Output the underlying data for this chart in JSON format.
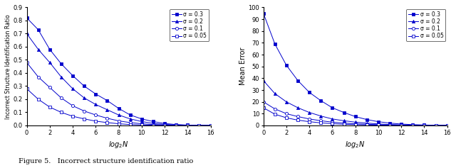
{
  "x_values": [
    0,
    1,
    2,
    3,
    4,
    5,
    6,
    7,
    8,
    9,
    10,
    11,
    12,
    13,
    14,
    15,
    16
  ],
  "left_sigma03": [
    0.82,
    0.73,
    0.58,
    0.47,
    0.38,
    0.3,
    0.24,
    0.19,
    0.13,
    0.08,
    0.05,
    0.03,
    0.015,
    0.007,
    0.003,
    0.001,
    0.0005
  ],
  "left_sigma02": [
    0.7,
    0.58,
    0.48,
    0.37,
    0.28,
    0.21,
    0.16,
    0.12,
    0.08,
    0.05,
    0.03,
    0.016,
    0.008,
    0.004,
    0.002,
    0.001,
    0.0003
  ],
  "left_sigma01": [
    0.48,
    0.37,
    0.29,
    0.21,
    0.15,
    0.11,
    0.08,
    0.055,
    0.035,
    0.022,
    0.013,
    0.007,
    0.004,
    0.002,
    0.001,
    0.0005,
    0.0002
  ],
  "left_sigma005": [
    0.28,
    0.2,
    0.14,
    0.1,
    0.07,
    0.05,
    0.033,
    0.022,
    0.013,
    0.007,
    0.004,
    0.002,
    0.001,
    0.0006,
    0.0003,
    0.0001,
    5e-05
  ],
  "right_sigma03": [
    95,
    69,
    51,
    38,
    28,
    21,
    15,
    11,
    7.5,
    5,
    3.2,
    2,
    1.2,
    0.7,
    0.4,
    0.2,
    0.1
  ],
  "right_sigma02": [
    38,
    27,
    20,
    15,
    11,
    8,
    5.5,
    4,
    2.8,
    2,
    1.3,
    0.8,
    0.5,
    0.3,
    0.15,
    0.08,
    0.04
  ],
  "right_sigma01": [
    20,
    14,
    10,
    7.5,
    5.5,
    4,
    2.8,
    2,
    1.4,
    1.0,
    0.65,
    0.4,
    0.25,
    0.15,
    0.08,
    0.04,
    0.02
  ],
  "right_sigma005": [
    15,
    9.5,
    6.5,
    4.5,
    3.2,
    2.2,
    1.5,
    1.0,
    0.7,
    0.45,
    0.3,
    0.18,
    0.11,
    0.06,
    0.03,
    0.015,
    0.007
  ],
  "color": "#0000cc",
  "left_ylabel": "Incorrect Structure Identification Ratio",
  "right_ylabel": "Mean Error",
  "xlabel": "$log_2 N$",
  "left_ylim": [
    0,
    0.9
  ],
  "right_ylim": [
    0,
    100
  ],
  "left_yticks": [
    0,
    0.1,
    0.2,
    0.3,
    0.4,
    0.5,
    0.6,
    0.7,
    0.8,
    0.9
  ],
  "right_yticks": [
    0,
    10,
    20,
    30,
    40,
    50,
    60,
    70,
    80,
    90,
    100
  ],
  "xticks": [
    0,
    2,
    4,
    6,
    8,
    10,
    12,
    14,
    16
  ],
  "xlim": [
    0,
    16
  ],
  "legend_labels": [
    "σ = 0.3",
    "σ = 0.2",
    "σ = 0.1",
    "σ = 0.05"
  ],
  "caption": "Figure 5.   Incorrect structure identification ratio"
}
